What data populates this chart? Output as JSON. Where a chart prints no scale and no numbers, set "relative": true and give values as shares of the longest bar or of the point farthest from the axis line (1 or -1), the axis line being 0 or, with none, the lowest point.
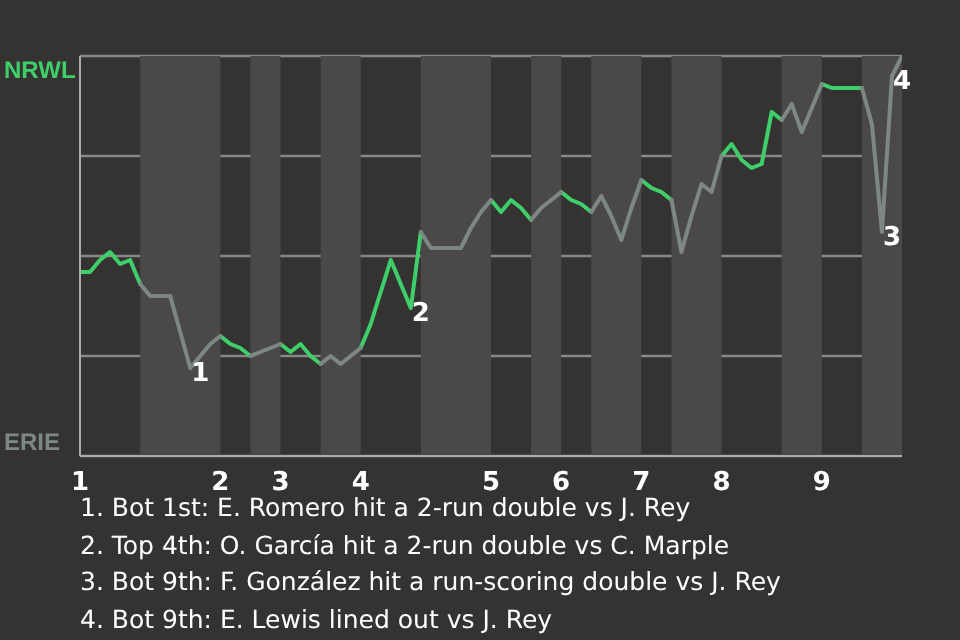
{
  "chart_data": {
    "type": "line",
    "categories": [
      "1",
      null,
      null,
      null,
      null,
      null,
      null,
      null,
      null,
      null,
      null,
      null,
      null,
      null,
      "2",
      null,
      null,
      null,
      null,
      null,
      "3",
      null,
      null,
      null,
      null,
      null,
      null,
      null,
      "4",
      null,
      null,
      null,
      null,
      null,
      null,
      null,
      null,
      null,
      null,
      null,
      null,
      "5",
      null,
      null,
      null,
      null,
      null,
      null,
      "6",
      null,
      null,
      null,
      null,
      null,
      null,
      null,
      "7",
      null,
      null,
      null,
      null,
      null,
      null,
      null,
      "8",
      null,
      null,
      null,
      null,
      null,
      null,
      null,
      null,
      null,
      "9",
      null,
      null,
      null,
      null,
      null,
      null,
      null,
      null
    ],
    "series": [
      {
        "name": "NRWL",
        "color": "#3ecf6a",
        "values": [
          0.46,
          0.46,
          0.49,
          0.51,
          0.48,
          0.49,
          0.43,
          null,
          null,
          null,
          null,
          null,
          null,
          null,
          0.3,
          0.28,
          0.27,
          0.25,
          null,
          null,
          0.28,
          0.26,
          0.28,
          0.25,
          0.23,
          null,
          null,
          null,
          0.27,
          0.33,
          0.41,
          0.49,
          0.43,
          0.37,
          0.56,
          null,
          null,
          null,
          null,
          null,
          null,
          0.64,
          0.61,
          0.64,
          0.62,
          0.59,
          null,
          null,
          0.66,
          0.64,
          0.63,
          0.61,
          null,
          null,
          null,
          null,
          0.69,
          0.67,
          0.66,
          0.64,
          null,
          null,
          null,
          null,
          0.75,
          0.78,
          0.74,
          0.72,
          0.73,
          0.86,
          0.84,
          null,
          null,
          null,
          0.93,
          0.92,
          0.92,
          0.92,
          0.92,
          null,
          null,
          null,
          null
        ]
      },
      {
        "name": "ERIE",
        "color": "#7d8785",
        "values": [
          null,
          null,
          null,
          null,
          null,
          null,
          0.43,
          0.4,
          0.4,
          0.4,
          0.31,
          0.22,
          0.25,
          0.28,
          0.3,
          null,
          null,
          0.25,
          0.26,
          0.27,
          0.28,
          null,
          null,
          null,
          0.23,
          0.25,
          0.23,
          0.25,
          0.27,
          null,
          null,
          null,
          null,
          null,
          0.56,
          0.52,
          0.52,
          0.52,
          0.52,
          0.57,
          0.61,
          0.64,
          null,
          null,
          null,
          0.59,
          0.62,
          0.64,
          0.66,
          null,
          null,
          0.61,
          0.65,
          0.6,
          0.54,
          0.62,
          0.69,
          null,
          null,
          0.64,
          0.51,
          0.6,
          0.68,
          0.66,
          0.75,
          null,
          null,
          null,
          null,
          null,
          0.84,
          0.88,
          0.81,
          0.87,
          0.93,
          null,
          null,
          null,
          0.92,
          0.83,
          0.56,
          0.95,
          1.0
        ]
      }
    ],
    "relative": true,
    "legend": "left",
    "grid": "y",
    "marker": "none",
    "line_style": "solid",
    "annotations": [
      {
        "text": "1",
        "y": 0.22
      },
      {
        "text": "2",
        "y": 0.37
      },
      {
        "text": "3",
        "y": 0.56
      },
      {
        "text": "4",
        "y": 0.95
      },
      "1. Bot 1st: E. Romero hit a 2-run double vs J. Rey",
      "2. Top 4th: O. García hit a 2-run double vs C. Marple",
      "3. Bot 9th: F. González hit a run-scoring double vs J. Rey",
      "4. Bot 9th: E. Lewis lined out vs J. Rey"
    ]
  }
}
